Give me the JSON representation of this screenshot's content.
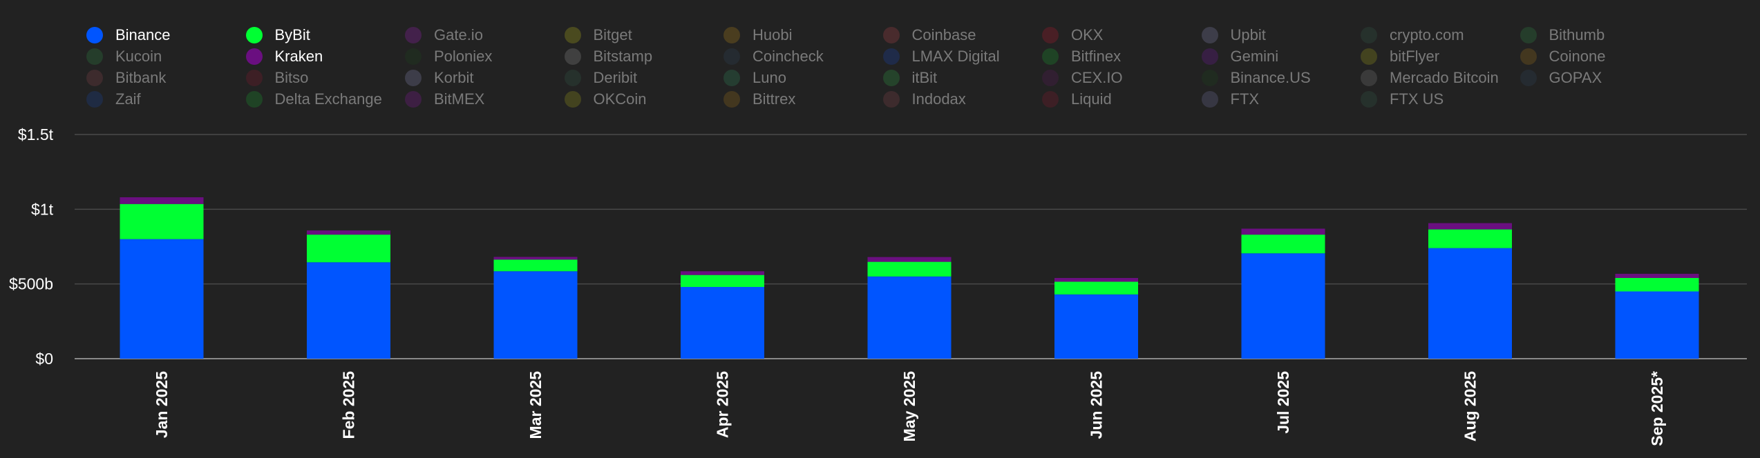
{
  "chart_data": {
    "type": "bar",
    "stacked": true,
    "title": "",
    "xlabel": "",
    "ylabel": "",
    "categories": [
      "Jan 2025",
      "Feb 2025",
      "Mar 2025",
      "Apr 2025",
      "May 2025",
      "Jun 2025",
      "Jul 2025",
      "Aug 2025",
      "Sep 2025*"
    ],
    "series": [
      {
        "name": "Binance",
        "color": "#0055ff",
        "values": [
          800,
          645,
          585,
          480,
          550,
          430,
          705,
          740,
          450
        ]
      },
      {
        "name": "ByBit",
        "color": "#00ff33",
        "values": [
          235,
          185,
          78,
          80,
          98,
          85,
          125,
          125,
          90
        ]
      },
      {
        "name": "Kraken",
        "color": "#6a0f80",
        "values": [
          45,
          28,
          18,
          25,
          32,
          25,
          40,
          42,
          28
        ]
      }
    ],
    "ylim": [
      0,
      1500
    ],
    "yticks": [
      {
        "value": 0,
        "label": "$0"
      },
      {
        "value": 500,
        "label": "$500b"
      },
      {
        "value": 1000,
        "label": "$1t"
      },
      {
        "value": 1500,
        "label": "$1.5t"
      }
    ],
    "grid": true,
    "legend_position": "top",
    "legend": [
      {
        "name": "Binance",
        "color": "#0055ff",
        "active": true
      },
      {
        "name": "ByBit",
        "color": "#00ff33",
        "active": true
      },
      {
        "name": "Gate.io",
        "color": "#7a1f8f",
        "active": false
      },
      {
        "name": "Bitget",
        "color": "#8c8c1a",
        "active": false
      },
      {
        "name": "Huobi",
        "color": "#8c6a1a",
        "active": false
      },
      {
        "name": "Coinbase",
        "color": "#8a3a40",
        "active": false
      },
      {
        "name": "OKX",
        "color": "#8a1a2a",
        "active": false
      },
      {
        "name": "Upbit",
        "color": "#6a6a8a",
        "active": false
      },
      {
        "name": "crypto.com",
        "color": "#2e4a3c",
        "active": false
      },
      {
        "name": "Bithumb",
        "color": "#2a6a3a",
        "active": false
      },
      {
        "name": "Kucoin",
        "color": "#2a6a3a",
        "active": false
      },
      {
        "name": "Kraken",
        "color": "#6a0f80",
        "active": true
      },
      {
        "name": "Poloniex",
        "color": "#1e3a1e",
        "active": false
      },
      {
        "name": "Bitstamp",
        "color": "#707070",
        "active": false
      },
      {
        "name": "Coincheck",
        "color": "#2a3a4a",
        "active": false
      },
      {
        "name": "LMAX Digital",
        "color": "#1a3a8a",
        "active": false
      },
      {
        "name": "Bitfinex",
        "color": "#1a7a2a",
        "active": false
      },
      {
        "name": "Gemini",
        "color": "#5a1a7a",
        "active": false
      },
      {
        "name": "bitFlyer",
        "color": "#7a7a1a",
        "active": false
      },
      {
        "name": "Coinone",
        "color": "#7a5a1a",
        "active": false
      },
      {
        "name": "Bitbank",
        "color": "#6a3a40",
        "active": false
      },
      {
        "name": "Bitso",
        "color": "#6a1a2a",
        "active": false
      },
      {
        "name": "Korbit",
        "color": "#6a6a8a",
        "active": false
      },
      {
        "name": "Deribit",
        "color": "#2e4a3c",
        "active": false
      },
      {
        "name": "Luno",
        "color": "#2a6a4a",
        "active": false
      },
      {
        "name": "itBit",
        "color": "#2a7a3a",
        "active": false
      },
      {
        "name": "CEX.IO",
        "color": "#4a1a4a",
        "active": false
      },
      {
        "name": "Binance.US",
        "color": "#1e3a1e",
        "active": false
      },
      {
        "name": "Mercado Bitcoin",
        "color": "#606060",
        "active": false
      },
      {
        "name": "GOPAX",
        "color": "#2a3a4a",
        "active": false
      },
      {
        "name": "Zaif",
        "color": "#1a3a7a",
        "active": false
      },
      {
        "name": "Delta Exchange",
        "color": "#1a7a2a",
        "active": false
      },
      {
        "name": "BitMEX",
        "color": "#6a1a7a",
        "active": false
      },
      {
        "name": "OKCoin",
        "color": "#7a7a1a",
        "active": false
      },
      {
        "name": "Bittrex",
        "color": "#7a5a1a",
        "active": false
      },
      {
        "name": "Indodax",
        "color": "#6a3a40",
        "active": false
      },
      {
        "name": "Liquid",
        "color": "#6a1a2a",
        "active": false
      },
      {
        "name": "FTX",
        "color": "#5a5a7a",
        "active": false
      },
      {
        "name": "FTX US",
        "color": "#2e4a3c",
        "active": false
      }
    ]
  },
  "colors": {
    "background": "#222222",
    "gridline": "#4a4a4a",
    "axis": "#8a8a8a",
    "text": "#ffffff"
  }
}
